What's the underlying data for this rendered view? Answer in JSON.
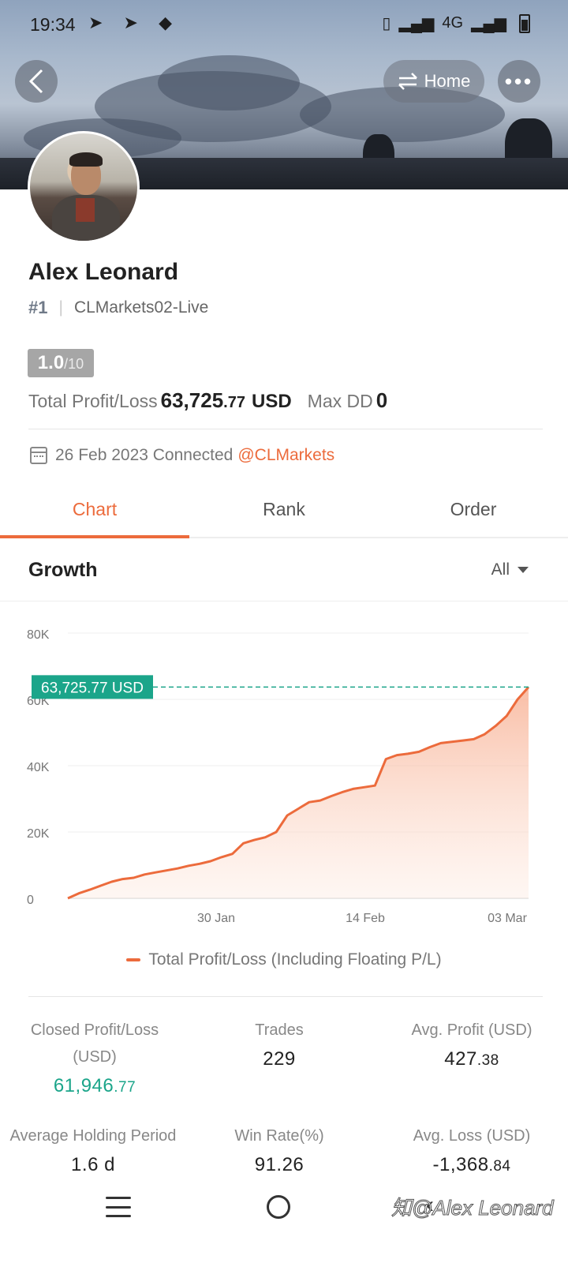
{
  "status_bar": {
    "time": "19:34",
    "left_icons": "➤ ➤ ◆",
    "network": "4G"
  },
  "header": {
    "home_label": "Home"
  },
  "profile": {
    "name": "Alex Leonard",
    "rank": "#1",
    "server": "CLMarkets02-Live",
    "score": "1.0",
    "score_denominator": "/10",
    "total_pl_label": "Total Profit/Loss",
    "total_pl_int": "63,725",
    "total_pl_dec": ".77",
    "total_pl_unit": "USD",
    "max_dd_label": "Max DD",
    "max_dd_value": "0",
    "connected_text": "26 Feb 2023 Connected",
    "connected_handle": "@CLMarkets"
  },
  "tabs": [
    {
      "label": "Chart",
      "active": true
    },
    {
      "label": "Rank",
      "active": false
    },
    {
      "label": "Order",
      "active": false
    }
  ],
  "section": {
    "title": "Growth",
    "filter": "All"
  },
  "chart_data": {
    "type": "area",
    "title": "",
    "y_ticks": [
      "0",
      "20K",
      "40K",
      "60K",
      "80K"
    ],
    "ylim": [
      0,
      80000
    ],
    "x_ticks": [
      "30 Jan",
      "14 Feb",
      "03 Mar"
    ],
    "current_value_label": "63,725.77 USD",
    "current_value": 63725.77,
    "series": [
      {
        "name": "Total Profit/Loss (Including Floating P/L)",
        "color": "#ec6b3c",
        "values": [
          0,
          1500,
          2600,
          3800,
          5000,
          5800,
          6200,
          7200,
          7800,
          8400,
          9000,
          9800,
          10400,
          11200,
          12400,
          13400,
          16600,
          17600,
          18400,
          20000,
          25000,
          27000,
          29000,
          29500,
          30800,
          32000,
          33000,
          33500,
          34000,
          42000,
          43200,
          43600,
          44200,
          45600,
          46800,
          47200,
          47600,
          48000,
          49500,
          52000,
          55000,
          60000,
          63725.77
        ]
      }
    ]
  },
  "legend": {
    "label": "Total Profit/Loss (Including Floating P/L)"
  },
  "stats": {
    "closed_pl_label": "Closed Profit/Loss",
    "closed_pl_unit": "(USD)",
    "closed_pl_int": "61,946",
    "closed_pl_dec": ".77",
    "trades_label": "Trades",
    "trades_value": "229",
    "avg_profit_label": "Avg. Profit (USD)",
    "avg_profit_int": "427",
    "avg_profit_dec": ".38",
    "holding_label": "Average Holding Period",
    "holding_value": "1.6 d",
    "win_rate_label": "Win Rate(%)",
    "win_rate_value": "91.26",
    "avg_loss_label": "Avg. Loss (USD)",
    "avg_loss_int": "-1,368",
    "avg_loss_dec": ".84"
  },
  "watermark": "知@Alex Leonard",
  "colors": {
    "accent": "#ec6b3c",
    "positive": "#1ba58a"
  }
}
